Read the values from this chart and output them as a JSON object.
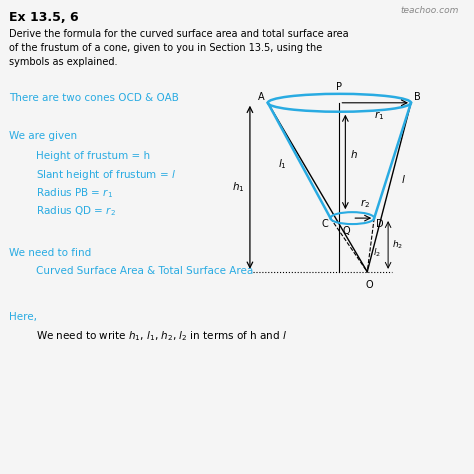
{
  "title": "Ex 13.5, 6",
  "watermark": "teachoo.com",
  "bg_color": "#f5f5f5",
  "text_color": "#000000",
  "cyan_color": "#29ABE2",
  "dark_cyan": "#1a7ca8",
  "body_text": "Derive the formula for the curved surface area and total surface area\nof the frustum of a cone, given to you in Section 13.5, using the\nsymbols as explained.",
  "line1": "There are two cones OCD & OAB",
  "line2": "We are given",
  "indented": [
    "Height of frustum = h",
    "Slant height of frustum = l",
    "Radius PB = r",
    "Radius QD = r"
  ],
  "line3": "We need to find",
  "indented2": "Curved Surface Area & Total Surface Area",
  "line4": "Here,",
  "indented3": "We need to write h"
}
